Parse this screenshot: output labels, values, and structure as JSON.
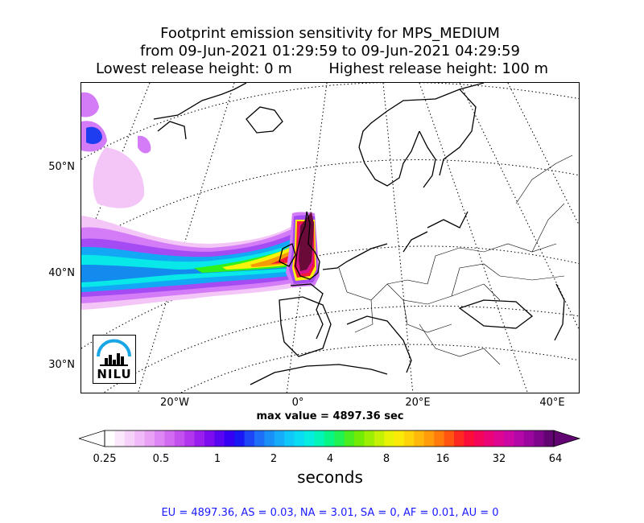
{
  "title": {
    "line1": "Footprint emission sensitivity for MPS_MEDIUM",
    "line2": "from 09-Jun-2021 01:29:59 to 09-Jun-2021 04:29:59",
    "line3_left": "Lowest release height: 0 m",
    "line3_right": "Highest release height: 100 m"
  },
  "map": {
    "lat_labels": [
      "50°N",
      "40°N",
      "30°N"
    ],
    "lon_labels": [
      "20°W",
      "0°",
      "20°E",
      "40°E"
    ],
    "max_value": "max value = 4897.36 sec",
    "logo_text": "NILU",
    "plume_colors": [
      "#f3c6f7",
      "#d47cf7",
      "#a44bf4",
      "#1e3cf0",
      "#12a8f5",
      "#08e8e8",
      "#2ef21a",
      "#f6f40a",
      "#f79a06",
      "#f5173a",
      "#d6118c",
      "#6a0a38"
    ]
  },
  "colorbar": {
    "ticks": [
      "0.25",
      "0.5",
      "1",
      "2",
      "4",
      "8",
      "16",
      "32",
      "64"
    ],
    "label": "seconds",
    "colors": [
      "#ffffff",
      "#fbe8fd",
      "#f6d2fb",
      "#f0baf8",
      "#e8a1f5",
      "#de86f3",
      "#d16cf1",
      "#c351ef",
      "#b136ee",
      "#9a1fef",
      "#7d0df0",
      "#5a05f2",
      "#3600f3",
      "#1a18f5",
      "#1f46f6",
      "#1f6ef7",
      "#1b8ff8",
      "#17acf9",
      "#11c6f9",
      "#0adcf3",
      "#05ece0",
      "#03f5b8",
      "#07f686",
      "#20f253",
      "#4aee20",
      "#73ec05",
      "#9cee03",
      "#c3f004",
      "#e6f206",
      "#fbe908",
      "#ffd30a",
      "#ffb80b",
      "#ff9c0c",
      "#ff7c0c",
      "#ff5511",
      "#ff2a1f",
      "#fb0d3a",
      "#f4055a",
      "#ea0478",
      "#dd0592",
      "#cc07a4",
      "#b508a8",
      "#9b079e",
      "#7f068c",
      "#620472"
    ]
  },
  "footer": "EU = 4897.36,  AS = 0.03,  NA = 3.01,  SA = 0,  AF = 0.01,  AU = 0"
}
